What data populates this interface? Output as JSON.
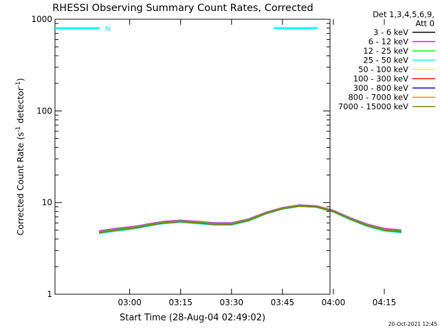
{
  "chart_data": {
    "type": "line",
    "title": "RHESSI Observing Summary Count Rates, Corrected",
    "xlabel": "Start Time (28-Aug-04 02:49:02)",
    "ylabel_main": "Corrected Count Rate (s",
    "ylabel_sup1": "-1",
    "ylabel_mid": " detector",
    "ylabel_sup2": "-1",
    "ylabel_end": ")",
    "y_scale": "log",
    "ylim": [
      1,
      1000
    ],
    "xlim_minutes": [
      -22,
      59
    ],
    "xticks": [
      {
        "label": "03:00",
        "t": 0
      },
      {
        "label": "03:15",
        "t": 15
      },
      {
        "label": "03:30",
        "t": 30
      },
      {
        "label": "03:45",
        "t": 45
      },
      {
        "label": "04:00",
        "t": 60
      },
      {
        "label": "04:15",
        "t": 75
      }
    ],
    "yticks": [
      {
        "label": "1",
        "v": 1
      },
      {
        "label": "10",
        "v": 10
      },
      {
        "label": "100",
        "v": 100
      },
      {
        "label": "1000",
        "v": 1000
      }
    ],
    "legend_header_1": "Det 1,3,4,5,6,9,",
    "legend_header_2": "Att 0",
    "legend_placement": "right",
    "footer": "20-Oct-2021 12:45",
    "night_marker_label": "N",
    "series": [
      {
        "name": "3 - 6 keV",
        "color": "#000000",
        "x": [
          -9,
          -4,
          0,
          3,
          5,
          10,
          15,
          20,
          25,
          30,
          35,
          40,
          45,
          50,
          55,
          60,
          65,
          70,
          75,
          80
        ],
        "y": [
          4.7,
          5.0,
          5.2,
          5.4,
          5.6,
          6.0,
          6.2,
          6.0,
          5.8,
          5.8,
          6.4,
          7.6,
          8.6,
          9.2,
          9.0,
          8.0,
          6.6,
          5.6,
          5.0,
          4.8
        ]
      },
      {
        "name": "6 - 12 keV",
        "color": "#ff00ff",
        "x": [
          -9,
          -4,
          0,
          3,
          5,
          10,
          15,
          20,
          25,
          30,
          35,
          40,
          45,
          50,
          55,
          60,
          65,
          70,
          75,
          80
        ],
        "y": [
          4.9,
          5.2,
          5.4,
          5.6,
          5.8,
          6.2,
          6.4,
          6.2,
          6.0,
          6.0,
          6.6,
          7.8,
          8.8,
          9.4,
          9.2,
          8.2,
          6.8,
          5.8,
          5.2,
          5.0
        ]
      },
      {
        "name": "12 - 25 keV",
        "color": "#00ff00",
        "x": [
          -9,
          -4,
          0,
          3,
          5,
          10,
          15,
          20,
          25,
          30,
          35,
          40,
          45,
          50,
          55,
          60,
          65,
          70,
          75,
          80
        ],
        "y": [
          4.8,
          5.1,
          5.3,
          5.5,
          5.7,
          6.1,
          6.3,
          6.1,
          5.9,
          5.9,
          6.5,
          7.7,
          8.7,
          9.3,
          9.1,
          8.1,
          6.7,
          5.7,
          5.1,
          4.9
        ]
      },
      {
        "name": "25 - 50 keV",
        "color": "#00ffff",
        "x": [
          -9,
          -4,
          0,
          3,
          5,
          10,
          15,
          20,
          25,
          30,
          35,
          40,
          45,
          50,
          55,
          60,
          65,
          70,
          75,
          80
        ],
        "y": [
          4.6,
          4.9,
          5.1,
          5.3,
          5.5,
          5.9,
          6.1,
          5.9,
          5.7,
          5.7,
          6.3,
          7.5,
          8.5,
          9.1,
          8.9,
          7.9,
          6.5,
          5.5,
          4.9,
          4.7
        ]
      },
      {
        "name": "50 - 100 keV",
        "color": "#ffff00",
        "x": [
          -9,
          -4,
          0,
          3,
          5,
          10,
          15,
          20,
          25,
          30,
          35,
          40,
          45,
          50,
          55,
          60,
          65,
          70,
          75,
          80
        ],
        "y": [
          4.7,
          5.0,
          5.2,
          5.4,
          5.6,
          6.0,
          6.2,
          6.0,
          5.8,
          5.8,
          6.4,
          7.6,
          8.6,
          9.2,
          9.0,
          8.0,
          6.6,
          5.6,
          5.0,
          4.8
        ]
      },
      {
        "name": "100 - 300 keV",
        "color": "#ff0000",
        "x": [
          -9,
          -4,
          0,
          3,
          5,
          10,
          15,
          20,
          25,
          30,
          35,
          40,
          45,
          50,
          55,
          60,
          65,
          70,
          75,
          80
        ],
        "y": [
          4.7,
          5.0,
          5.2,
          5.4,
          5.6,
          6.0,
          6.2,
          6.0,
          5.8,
          5.8,
          6.4,
          7.6,
          8.6,
          9.2,
          9.0,
          8.0,
          6.6,
          5.6,
          5.0,
          4.8
        ]
      },
      {
        "name": "300 - 800 keV",
        "color": "#0000ff",
        "x": [
          -9,
          -4,
          0,
          3,
          5,
          10,
          15,
          20,
          25,
          30,
          35,
          40,
          45,
          50,
          55,
          60,
          65,
          70,
          75,
          80
        ],
        "y": [
          4.7,
          5.0,
          5.2,
          5.4,
          5.6,
          6.0,
          6.2,
          6.0,
          5.8,
          5.8,
          6.4,
          7.6,
          8.6,
          9.2,
          9.0,
          8.0,
          6.6,
          5.6,
          5.0,
          4.8
        ]
      },
      {
        "name": "800 - 7000 keV",
        "color": "#ff8000",
        "x": [
          -9,
          -4,
          0,
          3,
          5,
          10,
          15,
          20,
          25,
          30,
          35,
          40,
          45,
          50,
          55,
          60,
          65,
          70,
          75,
          80
        ],
        "y": [
          4.7,
          5.0,
          5.2,
          5.4,
          5.6,
          6.0,
          6.2,
          6.0,
          5.8,
          5.8,
          6.4,
          7.6,
          8.6,
          9.2,
          9.0,
          8.0,
          6.6,
          5.6,
          5.0,
          4.8
        ]
      },
      {
        "name": "7000 - 15000 keV",
        "color": "#808000",
        "x": [
          -9,
          -4,
          0,
          3,
          5,
          10,
          15,
          20,
          25,
          30,
          35,
          40,
          45,
          50,
          55,
          60,
          65,
          70,
          75,
          80
        ],
        "y": [
          4.7,
          5.0,
          5.2,
          5.4,
          5.6,
          6.0,
          6.2,
          6.0,
          5.8,
          5.8,
          6.4,
          7.6,
          8.6,
          9.2,
          9.0,
          8.0,
          6.6,
          5.6,
          5.0,
          4.8
        ]
      }
    ]
  }
}
